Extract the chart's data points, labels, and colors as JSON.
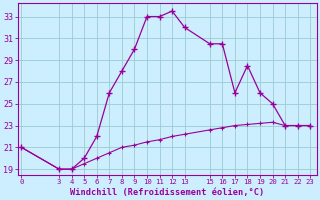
{
  "hours": [
    0,
    3,
    4,
    5,
    6,
    7,
    8,
    9,
    10,
    11,
    12,
    13,
    15,
    16,
    17,
    18,
    19,
    20,
    21,
    22,
    23
  ],
  "windchill": [
    21,
    19,
    19,
    20,
    22,
    26,
    28,
    30,
    33,
    33,
    33.5,
    32,
    30.5,
    30.5,
    26,
    28.5,
    26,
    25,
    23,
    23,
    23
  ],
  "temperature": [
    21,
    19,
    19,
    19.5,
    20,
    20.5,
    21,
    21.2,
    21.5,
    21.7,
    22.0,
    22.2,
    22.6,
    22.8,
    23.0,
    23.1,
    23.2,
    23.3,
    23.0,
    23.0,
    23.0
  ],
  "line_color": "#990099",
  "bg_color": "#cceeff",
  "grid_color": "#99cccc",
  "xlabel": "Windchill (Refroidissement éolien,°C)",
  "yticks": [
    19,
    21,
    23,
    25,
    27,
    29,
    31,
    33
  ],
  "xticks": [
    0,
    3,
    4,
    5,
    6,
    7,
    8,
    9,
    10,
    11,
    12,
    13,
    15,
    16,
    17,
    18,
    19,
    20,
    21,
    22,
    23
  ],
  "xlim": [
    -0.3,
    23.5
  ],
  "ylim": [
    18.5,
    34.2
  ],
  "figsize": [
    3.2,
    2.0
  ],
  "dpi": 100
}
